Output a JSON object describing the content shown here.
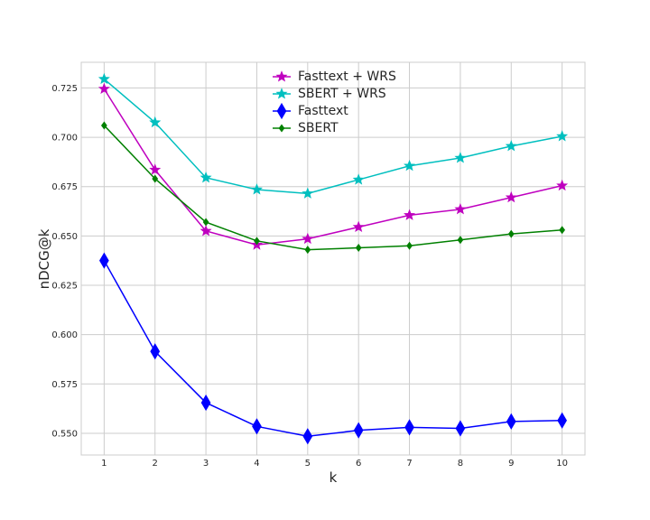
{
  "chart_data": {
    "type": "line",
    "title": "",
    "xlabel": "k",
    "ylabel": "nDCG@k",
    "x": [
      1,
      2,
      3,
      4,
      5,
      6,
      7,
      8,
      9,
      10
    ],
    "xticks": [
      "1",
      "2",
      "3",
      "4",
      "5",
      "6",
      "7",
      "8",
      "9",
      "10"
    ],
    "yticks": [
      "0.550",
      "0.575",
      "0.600",
      "0.625",
      "0.650",
      "0.675",
      "0.700",
      "0.725"
    ],
    "ylim": [
      0.539,
      0.738
    ],
    "xlim": [
      0.55,
      10.45
    ],
    "grid": true,
    "legend_position": "top-center",
    "series": [
      {
        "name": "Fasttext + WRS",
        "color": "#bf00bf",
        "marker": "star",
        "values": [
          0.7245,
          0.6835,
          0.6525,
          0.6455,
          0.6485,
          0.6545,
          0.6605,
          0.6635,
          0.6695,
          0.6755
        ]
      },
      {
        "name": "SBERT + WRS",
        "color": "#00bfbf",
        "marker": "star",
        "values": [
          0.7295,
          0.7075,
          0.6795,
          0.6735,
          0.6715,
          0.6785,
          0.6855,
          0.6895,
          0.6955,
          0.7005
        ]
      },
      {
        "name": "Fasttext",
        "color": "#0000ff",
        "marker": "thin-diamond-large",
        "values": [
          0.6375,
          0.5915,
          0.5655,
          0.5535,
          0.5485,
          0.5515,
          0.553,
          0.5525,
          0.556,
          0.5565
        ]
      },
      {
        "name": "SBERT",
        "color": "#008000",
        "marker": "thin-diamond-small",
        "values": [
          0.706,
          0.679,
          0.657,
          0.6475,
          0.643,
          0.644,
          0.645,
          0.648,
          0.651,
          0.653
        ]
      }
    ]
  }
}
